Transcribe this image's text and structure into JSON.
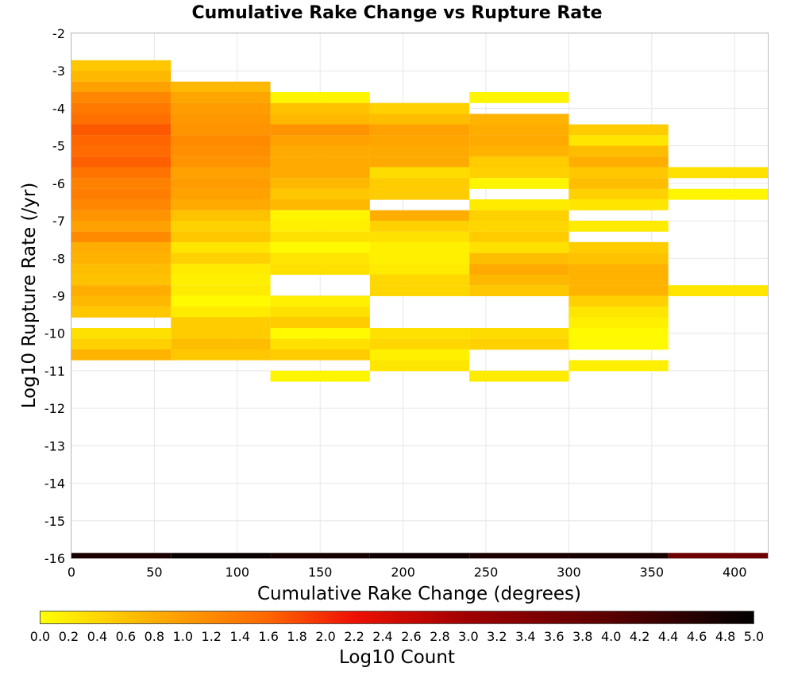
{
  "chart_data": {
    "type": "heatmap",
    "title": "Cumulative Rake Change vs Rupture Rate",
    "xlabel": "Cumulative Rake Change (degrees)",
    "ylabel": "Log10 Rupture Rate (/yr)",
    "xlim": [
      0,
      420
    ],
    "ylim": [
      -16,
      -2
    ],
    "xticks": [
      "0",
      "50",
      "100",
      "150",
      "200",
      "250",
      "300",
      "350",
      "400"
    ],
    "yticks": [
      "-2",
      "-3",
      "-4",
      "-5",
      "-6",
      "-7",
      "-8",
      "-9",
      "-10",
      "-11",
      "-12",
      "-13",
      "-14",
      "-15",
      "-16"
    ],
    "x_bin_width": 60,
    "y_bin_height": 0.2857,
    "grid": true,
    "colorbar": {
      "label": "Log10 Count",
      "min": 0,
      "max": 5,
      "ticks": [
        "0.0",
        "0.2",
        "0.4",
        "0.6",
        "0.8",
        "1.0",
        "1.2",
        "1.4",
        "1.6",
        "1.8",
        "2.0",
        "2.2",
        "2.4",
        "2.6",
        "2.8",
        "3.0",
        "3.2",
        "3.4",
        "3.6",
        "3.8",
        "4.0",
        "4.2",
        "4.4",
        "4.6",
        "4.8",
        "5.0"
      ],
      "stops": [
        [
          0.0,
          "#ffff00"
        ],
        [
          0.8,
          "#ffae00"
        ],
        [
          1.6,
          "#ff6600"
        ],
        [
          2.2,
          "#ee1100"
        ],
        [
          3.0,
          "#a00000"
        ],
        [
          4.0,
          "#5a0000"
        ],
        [
          5.0,
          "#000000"
        ]
      ]
    },
    "columns": [
      {
        "x": 0,
        "cells": [
          [
            -2.86,
            0.55
          ],
          [
            -3.14,
            0.7
          ],
          [
            -3.43,
            0.95
          ],
          [
            -3.71,
            1.25
          ],
          [
            -4.0,
            1.4
          ],
          [
            -4.29,
            1.5
          ],
          [
            -4.57,
            1.7
          ],
          [
            -4.86,
            1.6
          ],
          [
            -5.14,
            1.55
          ],
          [
            -5.43,
            1.65
          ],
          [
            -5.71,
            1.45
          ],
          [
            -6.0,
            1.3
          ],
          [
            -6.29,
            1.35
          ],
          [
            -6.57,
            1.25
          ],
          [
            -6.86,
            1.1
          ],
          [
            -7.14,
            0.95
          ],
          [
            -7.43,
            1.2
          ],
          [
            -7.71,
            0.8
          ],
          [
            -8.0,
            0.75
          ],
          [
            -8.29,
            0.65
          ],
          [
            -8.57,
            0.6
          ],
          [
            -8.86,
            0.8
          ],
          [
            -9.14,
            0.7
          ],
          [
            -9.43,
            0.55
          ],
          [
            -10.0,
            0.3
          ],
          [
            -10.29,
            0.45
          ],
          [
            -10.57,
            0.75
          ]
        ]
      },
      {
        "x": 60,
        "cells": [
          [
            -3.43,
            0.7
          ],
          [
            -3.71,
            0.9
          ],
          [
            -4.0,
            1.0
          ],
          [
            -4.29,
            1.05
          ],
          [
            -4.57,
            1.1
          ],
          [
            -4.86,
            1.2
          ],
          [
            -5.14,
            1.15
          ],
          [
            -5.43,
            1.1
          ],
          [
            -5.71,
            0.95
          ],
          [
            -6.0,
            1.0
          ],
          [
            -6.29,
            0.95
          ],
          [
            -6.57,
            0.85
          ],
          [
            -6.86,
            0.6
          ],
          [
            -7.14,
            0.45
          ],
          [
            -7.43,
            0.55
          ],
          [
            -7.71,
            0.25
          ],
          [
            -8.0,
            0.45
          ],
          [
            -8.29,
            0.2
          ],
          [
            -8.57,
            0.15
          ],
          [
            -8.86,
            0.2
          ],
          [
            -9.14,
            0.05
          ],
          [
            -9.43,
            0.2
          ],
          [
            -9.71,
            0.5
          ],
          [
            -10.0,
            0.5
          ],
          [
            -10.29,
            0.65
          ],
          [
            -10.57,
            0.55
          ]
        ]
      },
      {
        "x": 120,
        "cells": [
          [
            -3.71,
            0.1
          ],
          [
            -4.0,
            0.6
          ],
          [
            -4.29,
            0.7
          ],
          [
            -4.57,
            1.1
          ],
          [
            -4.86,
            0.95
          ],
          [
            -5.14,
            0.85
          ],
          [
            -5.43,
            0.85
          ],
          [
            -5.71,
            0.85
          ],
          [
            -6.0,
            0.7
          ],
          [
            -6.29,
            0.55
          ],
          [
            -6.57,
            0.7
          ],
          [
            -6.86,
            0.1
          ],
          [
            -7.14,
            0.15
          ],
          [
            -7.43,
            0.3
          ],
          [
            -7.71,
            0.05
          ],
          [
            -8.0,
            0.25
          ],
          [
            -8.29,
            0.3
          ],
          [
            -9.14,
            0.15
          ],
          [
            -9.43,
            0.3
          ],
          [
            -9.71,
            0.5
          ],
          [
            -10.0,
            0.05
          ],
          [
            -10.29,
            0.3
          ],
          [
            -10.57,
            0.5
          ],
          [
            -11.14,
            0.1
          ]
        ]
      },
      {
        "x": 180,
        "cells": [
          [
            -4.0,
            0.45
          ],
          [
            -4.29,
            0.65
          ],
          [
            -4.57,
            0.95
          ],
          [
            -4.86,
            0.9
          ],
          [
            -5.14,
            0.85
          ],
          [
            -5.43,
            0.85
          ],
          [
            -5.71,
            0.35
          ],
          [
            -6.0,
            0.5
          ],
          [
            -6.29,
            0.5
          ],
          [
            -6.86,
            0.8
          ],
          [
            -7.14,
            0.45
          ],
          [
            -7.43,
            0.3
          ],
          [
            -7.71,
            0.15
          ],
          [
            -8.0,
            0.15
          ],
          [
            -8.29,
            0.2
          ],
          [
            -8.57,
            0.4
          ],
          [
            -8.86,
            0.4
          ],
          [
            -10.0,
            0.3
          ],
          [
            -10.29,
            0.4
          ],
          [
            -10.57,
            0.15
          ],
          [
            -10.86,
            0.25
          ]
        ]
      },
      {
        "x": 240,
        "cells": [
          [
            -3.71,
            0.1
          ],
          [
            -4.29,
            0.75
          ],
          [
            -4.57,
            0.8
          ],
          [
            -4.86,
            0.85
          ],
          [
            -5.14,
            0.75
          ],
          [
            -5.43,
            0.5
          ],
          [
            -5.71,
            0.45
          ],
          [
            -6.0,
            0.1
          ],
          [
            -6.57,
            0.2
          ],
          [
            -6.86,
            0.45
          ],
          [
            -7.14,
            0.4
          ],
          [
            -7.43,
            0.5
          ],
          [
            -7.71,
            0.3
          ],
          [
            -8.0,
            0.65
          ],
          [
            -8.29,
            0.85
          ],
          [
            -8.57,
            0.7
          ],
          [
            -8.86,
            0.55
          ],
          [
            -10.0,
            0.35
          ],
          [
            -10.29,
            0.45
          ],
          [
            -11.14,
            0.2
          ]
        ]
      },
      {
        "x": 300,
        "cells": [
          [
            -4.57,
            0.5
          ],
          [
            -4.86,
            0.25
          ],
          [
            -5.14,
            0.65
          ],
          [
            -5.43,
            0.8
          ],
          [
            -5.71,
            0.55
          ],
          [
            -6.0,
            0.65
          ],
          [
            -6.29,
            0.45
          ],
          [
            -6.57,
            0.25
          ],
          [
            -7.14,
            0.2
          ],
          [
            -7.71,
            0.5
          ],
          [
            -8.0,
            0.6
          ],
          [
            -8.29,
            0.75
          ],
          [
            -8.57,
            0.75
          ],
          [
            -8.86,
            0.75
          ],
          [
            -9.14,
            0.45
          ],
          [
            -9.43,
            0.25
          ],
          [
            -9.71,
            0.15
          ],
          [
            -10.0,
            0.05
          ],
          [
            -10.29,
            0.05
          ],
          [
            -10.86,
            0.15
          ]
        ]
      },
      {
        "x": 360,
        "cells": [
          [
            -5.71,
            0.3
          ],
          [
            -6.29,
            0.1
          ],
          [
            -8.86,
            0.25
          ]
        ]
      }
    ],
    "bottom_row": {
      "y": -16,
      "values": [
        4.7,
        4.9,
        4.75,
        4.85,
        4.7,
        4.75,
        3.7
      ]
    }
  }
}
